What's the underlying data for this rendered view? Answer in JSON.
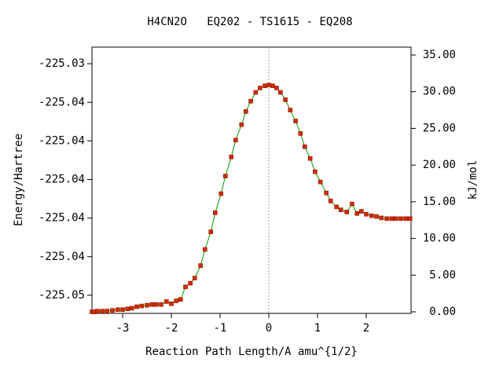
{
  "chart_data": {
    "type": "line",
    "title": "H4CN2O   EQ202 - TS1615 - EQ208",
    "xlabel": "Reaction Path Length/A amu^{1/2}",
    "ylabel": "Energy/Hartree",
    "y2label": "kJ/mol",
    "x": [
      -3.63,
      -3.58,
      -3.52,
      -3.42,
      -3.32,
      -3.21,
      -3.1,
      -3.0,
      -2.9,
      -2.81,
      -2.71,
      -2.61,
      -2.5,
      -2.4,
      -2.31,
      -2.21,
      -2.1,
      -2.0,
      -1.9,
      -1.81,
      -1.71,
      -1.61,
      -1.52,
      -1.4,
      -1.31,
      -1.19,
      -1.1,
      -0.98,
      -0.89,
      -0.77,
      -0.68,
      -0.56,
      -0.47,
      -0.37,
      -0.27,
      -0.18,
      -0.08,
      0.0,
      0.08,
      0.16,
      0.24,
      0.34,
      0.44,
      0.55,
      0.65,
      0.74,
      0.85,
      0.95,
      1.06,
      1.18,
      1.27,
      1.39,
      1.48,
      1.6,
      1.71,
      1.81,
      1.9,
      2.0,
      2.11,
      2.21,
      2.31,
      2.42,
      2.52,
      2.61,
      2.71,
      2.81,
      2.9
    ],
    "series": [
      {
        "color": "#00a000",
        "marker_color": "#d42a00",
        "axis": "y2",
        "values": [
          0.0,
          0.0,
          0.1,
          0.1,
          0.1,
          0.2,
          0.3,
          0.3,
          0.4,
          0.5,
          0.7,
          0.8,
          0.9,
          1.0,
          1.0,
          1.0,
          1.4,
          1.1,
          1.5,
          1.7,
          3.4,
          3.9,
          4.6,
          6.3,
          8.5,
          10.9,
          13.5,
          16.1,
          18.5,
          21.1,
          23.4,
          25.5,
          27.3,
          28.7,
          29.9,
          30.5,
          30.8,
          30.9,
          30.8,
          30.5,
          29.9,
          28.9,
          27.5,
          26.0,
          24.3,
          22.5,
          20.9,
          19.1,
          17.7,
          16.2,
          15.1,
          14.3,
          13.9,
          13.6,
          14.7,
          13.4,
          13.7,
          13.3,
          13.1,
          13.0,
          12.8,
          12.7,
          12.7,
          12.7,
          12.7,
          12.7,
          12.7
        ]
      }
    ],
    "xlim": [
      -3.63,
      2.92
    ],
    "xticks": [
      -3,
      -2,
      -1,
      0,
      1,
      2
    ],
    "ylim": [
      -225.04694,
      -225.03314
    ],
    "yticks": [
      {
        "value": -225.046,
        "label": "-225.05"
      },
      {
        "value": -225.044,
        "label": "-225.04"
      },
      {
        "value": -225.042,
        "label": "-225.04"
      },
      {
        "value": -225.04,
        "label": "-225.04"
      },
      {
        "value": -225.038,
        "label": "-225.04"
      },
      {
        "value": -225.036,
        "label": "-225.04"
      },
      {
        "value": -225.034,
        "label": "-225.03"
      }
    ],
    "y2lim": [
      -0.21,
      36.07
    ],
    "y2ticks": [
      {
        "value": 0,
        "label": "0.00"
      },
      {
        "value": 5,
        "label": "5.00"
      },
      {
        "value": 10,
        "label": "10.00"
      },
      {
        "value": 15,
        "label": "15.00"
      },
      {
        "value": 20,
        "label": "20.00"
      },
      {
        "value": 25,
        "label": "25.00"
      },
      {
        "value": 30,
        "label": "30.00"
      },
      {
        "value": 35,
        "label": "35.00"
      }
    ],
    "reference_line_x": 0
  }
}
